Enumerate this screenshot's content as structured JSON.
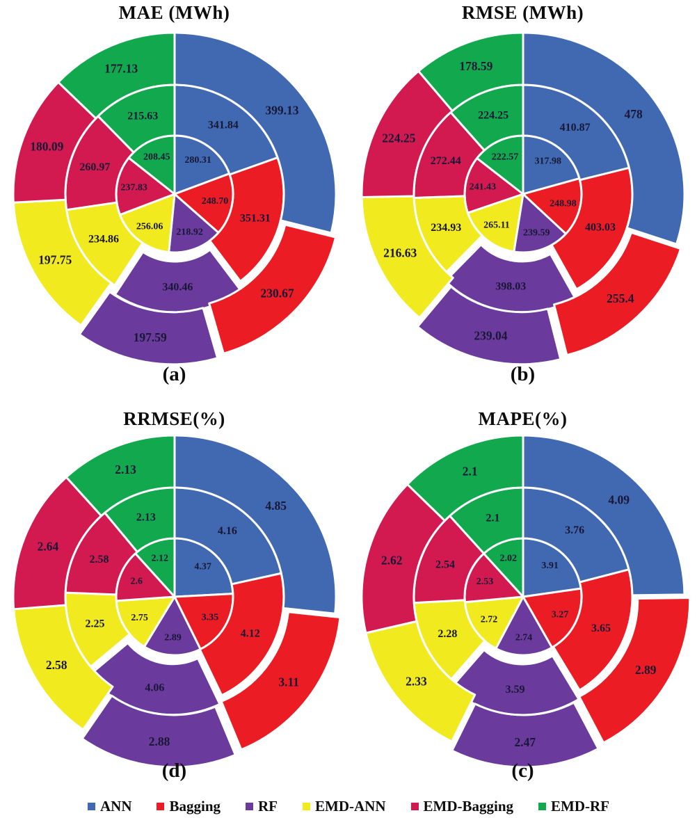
{
  "page_background": "#ffffff",
  "text_color": "#181836",
  "series": [
    {
      "name": "ANN",
      "color": "#4169b2"
    },
    {
      "name": "Bagging",
      "color": "#ec1c24"
    },
    {
      "name": "RF",
      "color": "#6a3a9c"
    },
    {
      "name": "EMD-ANN",
      "color": "#f0ea1f"
    },
    {
      "name": "EMD-Bagging",
      "color": "#d31a50"
    },
    {
      "name": "EMD-RF",
      "color": "#12a84e"
    }
  ],
  "legend": {
    "items": [
      {
        "label": "ANN",
        "color": "#4169b2"
      },
      {
        "label": "Bagging",
        "color": "#ec1c24"
      },
      {
        "label": "RF",
        "color": "#6a3a9c"
      },
      {
        "label": "EMD-ANN",
        "color": "#f0ea1f"
      },
      {
        "label": "EMD-Bagging",
        "color": "#d31a50"
      },
      {
        "label": "EMD-RF",
        "color": "#12a84e"
      }
    ]
  },
  "chart_data": [
    {
      "type": "pie",
      "subtype": "nested-rings",
      "title": "MAE (MWh)",
      "caption": "(a)",
      "grid_position": "top-left",
      "categories": [
        "ANN",
        "Bagging",
        "RF",
        "EMD-ANN",
        "EMD-Bagging",
        "EMD-RF"
      ],
      "rings": [
        {
          "name": "inner",
          "values": [
            280.31,
            248.7,
            218.92,
            256.06,
            237.83,
            208.45
          ],
          "labels": [
            "280.31",
            "248.70",
            "218.92",
            "256.06",
            "237.83",
            "208.45"
          ]
        },
        {
          "name": "middle",
          "values": [
            341.84,
            351.31,
            340.46,
            234.86,
            260.97,
            215.63
          ],
          "labels": [
            "341.84",
            "351.31",
            "340.46",
            "234.86",
            "260.97",
            "215.63"
          ]
        },
        {
          "name": "outer",
          "values": [
            399.13,
            230.67,
            197.59,
            197.75,
            180.09,
            177.13
          ],
          "labels": [
            "399.13",
            "230.67",
            "197.59",
            "197.75",
            "180.09",
            "177.13"
          ]
        }
      ]
    },
    {
      "type": "pie",
      "subtype": "nested-rings",
      "title": "RMSE (MWh)",
      "caption": "(b)",
      "grid_position": "top-right",
      "categories": [
        "ANN",
        "Bagging",
        "RF",
        "EMD-ANN",
        "EMD-Bagging",
        "EMD-RF"
      ],
      "rings": [
        {
          "name": "inner",
          "values": [
            317.98,
            248.98,
            239.59,
            265.11,
            241.43,
            222.57
          ],
          "labels": [
            "317.98",
            "248.98",
            "239.59",
            "265.11",
            "241.43",
            "222.57"
          ]
        },
        {
          "name": "middle",
          "values": [
            410.87,
            403.03,
            398.03,
            234.93,
            272.44,
            224.25
          ],
          "labels": [
            "410.87",
            "403.03",
            "398.03",
            "234.93",
            "272.44",
            "224.25"
          ]
        },
        {
          "name": "outer",
          "values": [
            478,
            255.4,
            239.04,
            216.63,
            224.25,
            178.59
          ],
          "labels": [
            "478",
            "255.4",
            "239.04",
            "216.63",
            "224.25",
            "178.59"
          ]
        }
      ]
    },
    {
      "type": "pie",
      "subtype": "nested-rings",
      "title": "RRMSE(%)",
      "caption": "(d)",
      "grid_position": "bottom-left",
      "categories": [
        "ANN",
        "Bagging",
        "RF",
        "EMD-ANN",
        "EMD-Bagging",
        "EMD-RF"
      ],
      "rings": [
        {
          "name": "inner",
          "values": [
            4.37,
            3.35,
            2.89,
            2.75,
            2.6,
            2.12
          ],
          "labels": [
            "4.37",
            "3.35",
            "2.89",
            "2.75",
            "2.6",
            "2.12"
          ]
        },
        {
          "name": "middle",
          "values": [
            4.16,
            4.12,
            4.06,
            2.25,
            2.58,
            2.13
          ],
          "labels": [
            "4.16",
            "4.12",
            "4.06",
            "2.25",
            "2.58",
            "2.13"
          ]
        },
        {
          "name": "outer",
          "values": [
            4.85,
            3.11,
            2.88,
            2.58,
            2.64,
            2.13
          ],
          "labels": [
            "4.85",
            "3.11",
            "2.88",
            "2.58",
            "2.64",
            "2.13"
          ]
        }
      ]
    },
    {
      "type": "pie",
      "subtype": "nested-rings",
      "title": "MAPE(%)",
      "caption": "(c)",
      "grid_position": "bottom-right",
      "categories": [
        "ANN",
        "Bagging",
        "RF",
        "EMD-ANN",
        "EMD-Bagging",
        "EMD-RF"
      ],
      "rings": [
        {
          "name": "inner",
          "values": [
            3.91,
            3.27,
            2.74,
            2.72,
            2.53,
            2.02
          ],
          "labels": [
            "3.91",
            "3.27",
            "2.74",
            "2.72",
            "2.53",
            "2.02"
          ]
        },
        {
          "name": "middle",
          "values": [
            3.76,
            3.65,
            3.59,
            2.28,
            2.54,
            2.1
          ],
          "labels": [
            "3.76",
            "3.65",
            "3.59",
            "2.28",
            "2.54",
            "2.1"
          ]
        },
        {
          "name": "outer",
          "values": [
            4.09,
            2.89,
            2.47,
            2.33,
            2.62,
            2.1
          ],
          "labels": [
            "4.09",
            "2.89",
            "2.47",
            "2.33",
            "2.62",
            "2.1"
          ]
        }
      ]
    }
  ]
}
